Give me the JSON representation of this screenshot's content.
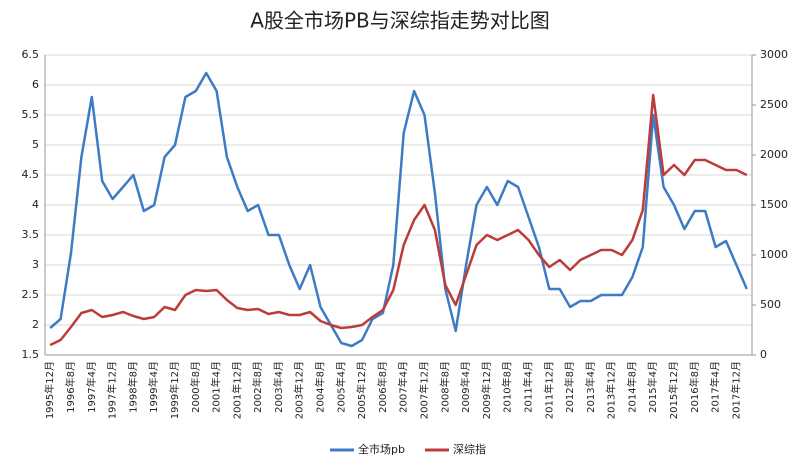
{
  "chart_data": {
    "type": "line",
    "title": "A股全市场PB与深综指走势对比图",
    "categories": [
      "1995年12月",
      null,
      "1996年8月",
      null,
      "1997年4月",
      null,
      "1997年12月",
      null,
      "1998年8月",
      null,
      "1999年4月",
      null,
      "1999年12月",
      null,
      "2000年8月",
      null,
      "2001年4月",
      null,
      "2001年12月",
      null,
      "2002年8月",
      null,
      "2003年4月",
      null,
      "2003年12月",
      null,
      "2004年8月",
      null,
      "2005年4月",
      null,
      "2005年12月",
      null,
      "2006年8月",
      null,
      "2007年4月",
      null,
      "2007年12月",
      null,
      "2008年8月",
      null,
      "2009年4月",
      null,
      "2009年12月",
      null,
      "2010年8月",
      null,
      "2011年4月",
      null,
      "2011年12月",
      null,
      "2012年8月",
      null,
      "2013年4月",
      null,
      "2013年12月",
      null,
      "2014年8月",
      null,
      "2015年4月",
      null,
      "2015年12月",
      null,
      "2016年8月",
      null,
      "2017年4月",
      null,
      "2017年12月",
      null
    ],
    "series": [
      {
        "name": "全市场pb",
        "color": "#3d7cc4",
        "values": [
          1.95,
          2.1,
          3.2,
          4.8,
          5.8,
          4.4,
          4.1,
          4.3,
          4.5,
          3.9,
          4.0,
          4.8,
          5.0,
          5.8,
          5.9,
          6.2,
          5.9,
          4.8,
          4.3,
          3.9,
          4.0,
          3.5,
          3.5,
          3.0,
          2.6,
          3.0,
          2.3,
          2.0,
          1.7,
          1.65,
          1.75,
          2.1,
          2.2,
          3.0,
          5.2,
          5.9,
          5.5,
          4.2,
          2.6,
          1.9,
          3.0,
          4.0,
          4.3,
          4.0,
          4.4,
          4.3,
          3.8,
          3.3,
          2.6,
          2.6,
          2.3,
          2.4,
          2.4,
          2.5,
          2.5,
          2.5,
          2.8,
          3.3,
          5.5,
          4.3,
          4.0,
          3.6,
          3.9,
          3.9,
          3.3,
          3.4,
          3.0,
          2.6
        ]
      },
      {
        "name": "深综指",
        "color": "#bc3c3a",
        "axis": "y2",
        "values": [
          100,
          150,
          280,
          420,
          450,
          380,
          400,
          430,
          390,
          360,
          380,
          480,
          450,
          600,
          650,
          640,
          650,
          550,
          470,
          450,
          460,
          410,
          430,
          400,
          400,
          430,
          340,
          300,
          270,
          280,
          300,
          380,
          450,
          650,
          1100,
          1350,
          1500,
          1250,
          700,
          500,
          800,
          1100,
          1200,
          1150,
          1200,
          1250,
          1150,
          1000,
          880,
          950,
          850,
          950,
          1000,
          1050,
          1050,
          1000,
          1150,
          1450,
          2600,
          1800,
          1900,
          1800,
          1950,
          1950,
          1900,
          1850,
          1850,
          1800
        ]
      }
    ],
    "ylim": [
      1.5,
      6.5
    ],
    "yticks": [
      1.5,
      2,
      2.5,
      3,
      3.5,
      4,
      4.5,
      5,
      5.5,
      6,
      6.5
    ],
    "y2lim": [
      0,
      3000
    ],
    "y2ticks": [
      0,
      500,
      1000,
      1500,
      2000,
      2500,
      3000
    ],
    "grid": true,
    "legend": "bottom"
  }
}
